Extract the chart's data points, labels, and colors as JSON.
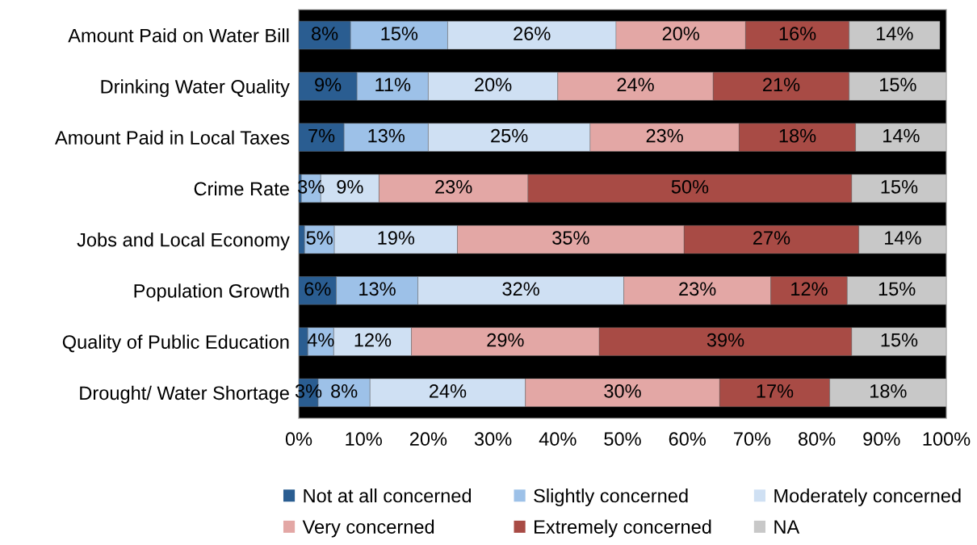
{
  "chart_data": {
    "type": "bar",
    "orientation": "horizontal",
    "stacked": true,
    "categories": [
      "Amount Paid on Water Bill",
      "Drinking Water Quality",
      "Amount Paid in Local Taxes",
      "Crime Rate",
      "Jobs and Local Economy",
      "Population Growth",
      "Quality of Public Education",
      "Drought/ Water Shortage"
    ],
    "series": [
      {
        "name": "Not at all concerned",
        "color": "#2a5d91",
        "values": [
          8,
          9,
          7,
          0.4,
          0.9,
          5.8,
          1.4,
          3
        ],
        "value_labels": [
          "8%",
          "9%",
          "7%",
          null,
          null,
          "6%",
          null,
          "3%"
        ]
      },
      {
        "name": "Slightly concerned",
        "color": "#9dc1e8",
        "values": [
          15,
          11,
          13,
          3,
          4.6,
          12.6,
          4,
          8
        ],
        "value_labels": [
          "15%",
          "11%",
          "13%",
          "3%",
          "5%",
          "13%",
          "4%",
          "8%"
        ]
      },
      {
        "name": "Moderately concerned",
        "color": "#cfe0f3",
        "values": [
          26,
          20,
          25,
          9,
          19,
          31.8,
          12,
          24
        ],
        "value_labels": [
          "26%",
          "20%",
          "25%",
          "9%",
          "19%",
          "32%",
          "12%",
          "24%"
        ]
      },
      {
        "name": "Very concerned",
        "color": "#e3a7a5",
        "values": [
          20,
          24,
          23,
          23,
          35,
          22.7,
          29,
          30
        ],
        "value_labels": [
          "20%",
          "24%",
          "23%",
          "23%",
          "35%",
          "23%",
          "29%",
          "30%"
        ]
      },
      {
        "name": "Extremely concerned",
        "color": "#a84b45",
        "values": [
          16,
          21,
          18,
          50,
          27,
          11.8,
          39,
          17
        ],
        "value_labels": [
          "16%",
          "21%",
          "18%",
          "50%",
          "27%",
          "12%",
          "39%",
          "17%"
        ]
      },
      {
        "name": "NA",
        "color": "#c8c8c8",
        "values": [
          14,
          15,
          14,
          14.6,
          13.5,
          15.3,
          14.6,
          18
        ],
        "value_labels": [
          "14%",
          "15%",
          "14%",
          "15%",
          "14%",
          "15%",
          "15%",
          "18%"
        ]
      }
    ],
    "xlim": [
      0,
      100
    ],
    "xticks": [
      {
        "value": 0,
        "label": "0%"
      },
      {
        "value": 10,
        "label": "10%"
      },
      {
        "value": 20,
        "label": "20%"
      },
      {
        "value": 30,
        "label": "30%"
      },
      {
        "value": 40,
        "label": "40%"
      },
      {
        "value": 50,
        "label": "50%"
      },
      {
        "value": 60,
        "label": "60%"
      },
      {
        "value": 70,
        "label": "70%"
      },
      {
        "value": 80,
        "label": "80%"
      },
      {
        "value": 90,
        "label": "90%"
      },
      {
        "value": 100,
        "label": "100%"
      }
    ],
    "grid": false,
    "legend": "bottom"
  }
}
